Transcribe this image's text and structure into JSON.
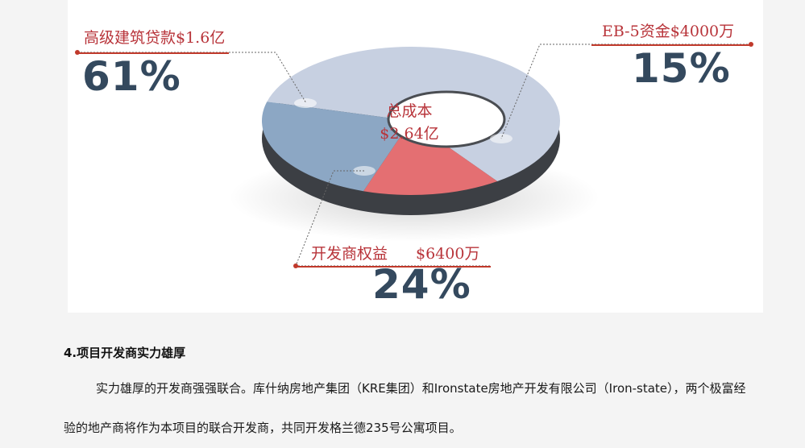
{
  "chart_data": {
    "type": "pie",
    "title": "",
    "center_label": {
      "line1": "总成本",
      "line2": "$2.64亿"
    },
    "slices": [
      {
        "label": "高级建筑贷款$1.6亿",
        "percent_label": "61%",
        "value": 61,
        "color": "#c7d0e1"
      },
      {
        "label": "EB-5资金$4000万",
        "percent_label": "15%",
        "value": 15,
        "color": "#e46f72"
      },
      {
        "label": "开发商权益",
        "amount": "$6400万",
        "percent_label": "24%",
        "value": 24,
        "color": "#8ca7c4"
      }
    ]
  },
  "section": {
    "heading": "4.项目开发商实力雄厚",
    "paragraph": "实力雄厚的开发商强强联合。库什纳房地产集团（KRE集团）和Ironstate房地产开发有限公司（Iron-state），两个极富经验的地产商将作为本项目的联合开发商，共同开发格兰德235号公寓项目。"
  }
}
